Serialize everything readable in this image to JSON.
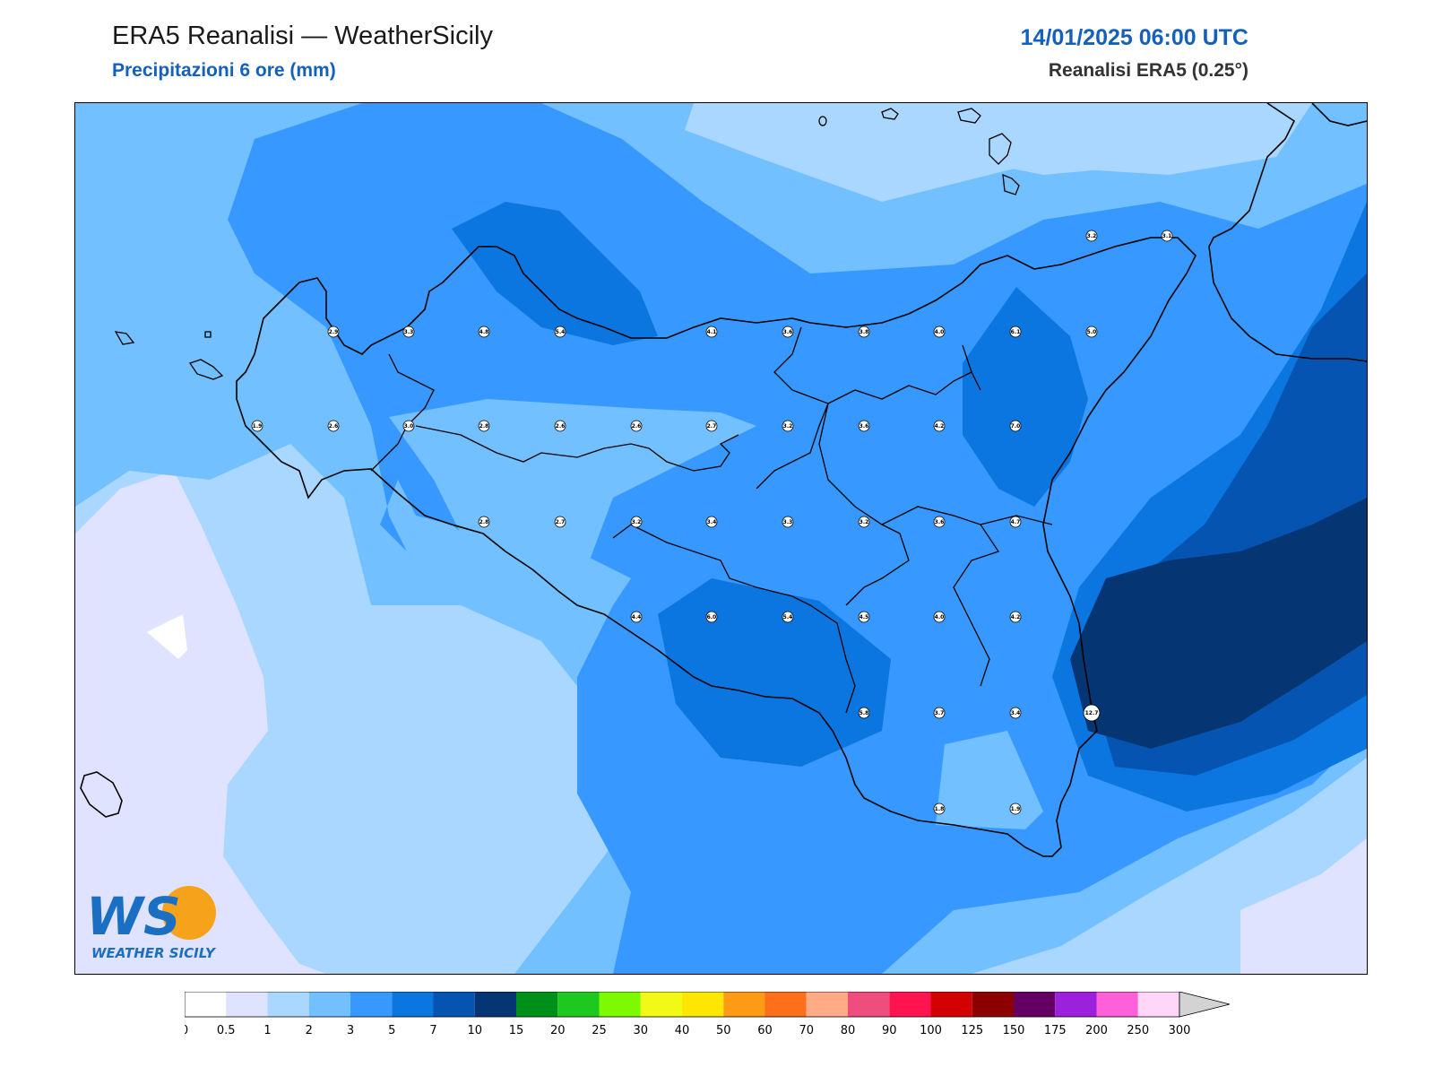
{
  "header": {
    "title": "ERA5 Reanalisi — WeatherSicily",
    "subtitle": "Precipitazioni 6 ore (mm)",
    "datetime": "14/01/2025 06:00 UTC",
    "source": "Reanalisi ERA5 (0.25°)"
  },
  "logo": {
    "mark": "WS",
    "text": "WEATHER SICILY"
  },
  "colorbar": {
    "levels": [
      "0",
      "0.5",
      "1",
      "2",
      "3",
      "5",
      "7",
      "10",
      "15",
      "20",
      "25",
      "30",
      "40",
      "50",
      "60",
      "70",
      "80",
      "90",
      "100",
      "125",
      "150",
      "175",
      "200",
      "250",
      "300"
    ],
    "colors": [
      "#ffffff",
      "#e0e3ff",
      "#aad7ff",
      "#72c0ff",
      "#3799ff",
      "#0b75e0",
      "#0554b1",
      "#063574",
      "#00901a",
      "#1ec81e",
      "#7dfa00",
      "#f0fa14",
      "#fde600",
      "#ff9a14",
      "#ff6e1a",
      "#ffab85",
      "#ef4d7e",
      "#ff1450",
      "#d20000",
      "#8e0000",
      "#640064",
      "#9b21dc",
      "#ff5fd8",
      "#ffd6f7"
    ],
    "extend_color": "#d3d3d3"
  },
  "stations": [
    {
      "v": "2.9",
      "c": "#ffffff"
    },
    {
      "v": "3.3",
      "c": "#ffffff"
    },
    {
      "v": "4.8",
      "c": "#ffffff"
    },
    {
      "v": "5.4",
      "c": "#ffffff"
    },
    {
      "v": "4.1",
      "c": "#ffffff"
    },
    {
      "v": "3.6",
      "c": "#ffffff"
    },
    {
      "v": "3.8",
      "c": "#ffffff"
    },
    {
      "v": "4.0",
      "c": "#ffffff"
    },
    {
      "v": "6.1",
      "c": "#ffffff"
    },
    {
      "v": "5.0",
      "c": "#ffffff"
    },
    {
      "v": "1.9",
      "c": "#ffffff"
    },
    {
      "v": "2.6",
      "c": "#ffffff"
    },
    {
      "v": "3.0",
      "c": "#ffffff"
    },
    {
      "v": "2.8",
      "c": "#ffffff"
    },
    {
      "v": "2.6",
      "c": "#ffffff"
    },
    {
      "v": "2.6",
      "c": "#ffffff"
    },
    {
      "v": "2.7",
      "c": "#ffffff"
    },
    {
      "v": "3.2",
      "c": "#ffffff"
    },
    {
      "v": "3.6",
      "c": "#ffffff"
    },
    {
      "v": "4.2",
      "c": "#ffffff"
    },
    {
      "v": "7.0",
      "c": "#ffffff"
    },
    {
      "v": "2.8",
      "c": "#ffffff"
    },
    {
      "v": "2.7",
      "c": "#ffffff"
    },
    {
      "v": "3.2",
      "c": "#ffffff"
    },
    {
      "v": "3.4",
      "c": "#ffffff"
    },
    {
      "v": "3.3",
      "c": "#ffffff"
    },
    {
      "v": "3.2",
      "c": "#ffffff"
    },
    {
      "v": "3.6",
      "c": "#ffffff"
    },
    {
      "v": "4.7",
      "c": "#ffffff"
    },
    {
      "v": "4.4",
      "c": "#ffffff"
    },
    {
      "v": "6.0",
      "c": "#ffffff"
    },
    {
      "v": "5.4",
      "c": "#ffffff"
    },
    {
      "v": "4.5",
      "c": "#ffffff"
    },
    {
      "v": "4.0",
      "c": "#ffffff"
    },
    {
      "v": "4.2",
      "c": "#ffffff"
    },
    {
      "v": "5.8",
      "c": "#ffffff"
    },
    {
      "v": "3.7",
      "c": "#ffffff"
    },
    {
      "v": "3.4",
      "c": "#ffffff"
    },
    {
      "v": "12.7",
      "c": "#ffffff"
    },
    {
      "v": "1.8",
      "c": "#ffffff"
    },
    {
      "v": "1.9",
      "c": "#ffffff"
    },
    {
      "v": "3.2",
      "c": "#ffffff"
    },
    {
      "v": "3.1",
      "c": "#ffffff"
    }
  ]
}
